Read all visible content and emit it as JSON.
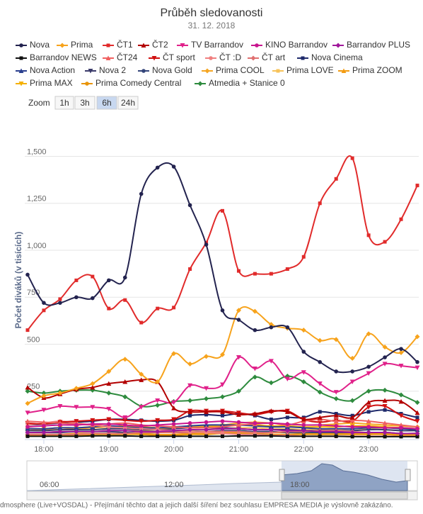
{
  "chart_data": {
    "type": "line",
    "title": "Průběh sledovanosti",
    "subtitle": "31. 12. 2018",
    "y_axis_title": "Počet diváků (v tisících)",
    "zoom": {
      "label": "Zoom",
      "buttons": [
        "1h",
        "3h",
        "6h",
        "24h"
      ],
      "selected": "6h"
    },
    "categories": [
      null,
      "18:00",
      null,
      null,
      null,
      "19:00",
      null,
      null,
      null,
      "20:00",
      null,
      null,
      null,
      "21:00",
      null,
      null,
      null,
      "22:00",
      null,
      null,
      null,
      "23:00",
      null,
      null,
      null
    ],
    "ylim": [
      0,
      1600
    ],
    "yticks": [
      250,
      500,
      750,
      {
        "value": 1000,
        "label": "1,000"
      },
      {
        "value": 1250,
        "label": "1,250"
      },
      {
        "value": 1500,
        "label": "1,500"
      }
    ],
    "grid": true,
    "navigator": {
      "xticks": [
        "06:00",
        "12:00",
        "18:00"
      ]
    },
    "credits": "dmosphere (Live+VOSDAL) - Přejímání těchto dat a jejich další šíření bez souhlasu EMPRESA MEDIA je výslovně zakázáno.",
    "series": [
      {
        "name": "Nova",
        "color": "#23234f",
        "values": [
          870,
          720,
          720,
          750,
          745,
          840,
          855,
          1300,
          1440,
          1445,
          1240,
          1030,
          680,
          630,
          575,
          590,
          590,
          460,
          405,
          355,
          355,
          380,
          430,
          475,
          405
        ]
      },
      {
        "name": "Prima",
        "color": "#f7a31c",
        "values": [
          185,
          225,
          240,
          265,
          290,
          355,
          420,
          340,
          300,
          450,
          395,
          435,
          445,
          680,
          675,
          605,
          585,
          575,
          520,
          525,
          425,
          555,
          485,
          455,
          540
        ]
      },
      {
        "name": "ČT1",
        "color": "#e12b2b",
        "values": [
          575,
          680,
          740,
          840,
          860,
          690,
          735,
          615,
          690,
          695,
          900,
          1040,
          1210,
          890,
          875,
          875,
          900,
          965,
          1250,
          1380,
          1490,
          1080,
          1045,
          1165,
          1345
        ]
      },
      {
        "name": "ČT2",
        "color": "#b30000",
        "values": [
          270,
          215,
          235,
          260,
          270,
          290,
          300,
          310,
          300,
          160,
          140,
          140,
          140,
          125,
          130,
          145,
          140,
          100,
          110,
          120,
          110,
          190,
          200,
          195,
          135
        ]
      },
      {
        "name": "TV Barrandov",
        "color": "#e0218a",
        "values": [
          135,
          150,
          170,
          165,
          165,
          155,
          110,
          165,
          200,
          190,
          280,
          265,
          285,
          430,
          370,
          410,
          315,
          350,
          290,
          245,
          300,
          345,
          395,
          385,
          375
        ]
      },
      {
        "name": "KINO Barrandov",
        "color": "#c8158e",
        "values": [
          60,
          65,
          70,
          70,
          75,
          75,
          70,
          65,
          70,
          75,
          80,
          85,
          90,
          85,
          80,
          80,
          75,
          70,
          70,
          65,
          60,
          60,
          55,
          55,
          50
        ]
      },
      {
        "name": "Barrandov PLUS",
        "color": "#a0179b",
        "values": [
          30,
          30,
          35,
          35,
          35,
          40,
          40,
          35,
          35,
          40,
          45,
          45,
          50,
          50,
          45,
          45,
          40,
          40,
          35,
          35,
          30,
          30,
          30,
          25,
          25
        ]
      },
      {
        "name": "Barrandov NEWS",
        "color": "#111111",
        "values": [
          10,
          10,
          10,
          10,
          12,
          12,
          12,
          10,
          10,
          10,
          10,
          10,
          10,
          12,
          12,
          12,
          10,
          10,
          10,
          10,
          8,
          8,
          8,
          8,
          8
        ]
      },
      {
        "name": "ČT24",
        "color": "#f06060",
        "values": [
          90,
          85,
          80,
          75,
          70,
          75,
          80,
          70,
          65,
          60,
          55,
          55,
          60,
          70,
          75,
          80,
          70,
          90,
          100,
          90,
          95,
          90,
          80,
          70,
          60
        ]
      },
      {
        "name": "ČT sport",
        "color": "#d01010",
        "values": [
          80,
          75,
          85,
          90,
          95,
          100,
          95,
          90,
          95,
          100,
          145,
          145,
          145,
          135,
          125,
          140,
          145,
          100,
          85,
          95,
          90,
          165,
          170,
          120,
          90
        ]
      },
      {
        "name": "ČT :D",
        "color": "#f08080",
        "values": [
          70,
          80,
          90,
          80,
          70,
          60,
          55,
          50,
          45,
          40,
          35,
          30,
          25,
          20,
          20,
          15,
          15,
          10,
          10,
          10,
          10,
          10,
          10,
          10,
          10
        ]
      },
      {
        "name": "ČT art",
        "color": "#e07070",
        "values": [
          20,
          20,
          20,
          20,
          25,
          25,
          25,
          30,
          30,
          30,
          30,
          35,
          35,
          35,
          30,
          30,
          35,
          35,
          40,
          40,
          35,
          30,
          30,
          25,
          25
        ]
      },
      {
        "name": "Nova Cinema",
        "color": "#1f2a6b",
        "values": [
          70,
          75,
          80,
          85,
          90,
          100,
          100,
          95,
          90,
          95,
          120,
          125,
          120,
          130,
          120,
          100,
          110,
          110,
          140,
          130,
          120,
          140,
          150,
          130,
          110
        ]
      },
      {
        "name": "Nova Action",
        "color": "#2a3f8f",
        "values": [
          50,
          50,
          55,
          55,
          60,
          65,
          60,
          55,
          55,
          60,
          65,
          70,
          70,
          70,
          65,
          60,
          60,
          55,
          50,
          50,
          50,
          55,
          55,
          50,
          45
        ]
      },
      {
        "name": "Nova 2",
        "color": "#3a3a6a",
        "values": [
          40,
          40,
          45,
          45,
          45,
          50,
          50,
          45,
          45,
          50,
          55,
          55,
          55,
          50,
          45,
          45,
          45,
          40,
          40,
          40,
          40,
          45,
          45,
          40,
          40
        ]
      },
      {
        "name": "Nova Gold",
        "color": "#34457a",
        "values": [
          30,
          30,
          30,
          35,
          35,
          35,
          30,
          30,
          30,
          35,
          35,
          35,
          40,
          40,
          35,
          35,
          30,
          30,
          30,
          30,
          30,
          30,
          30,
          25,
          25
        ]
      },
      {
        "name": "Prima COOL",
        "color": "#f5a623",
        "values": [
          40,
          45,
          45,
          50,
          55,
          60,
          60,
          55,
          50,
          55,
          60,
          65,
          70,
          80,
          85,
          80,
          75,
          70,
          70,
          75,
          80,
          75,
          70,
          65,
          60
        ]
      },
      {
        "name": "Prima LOVE",
        "color": "#f7c35a",
        "values": [
          30,
          30,
          35,
          35,
          35,
          40,
          40,
          40,
          35,
          35,
          40,
          45,
          50,
          55,
          55,
          50,
          50,
          45,
          45,
          45,
          50,
          50,
          45,
          40,
          40
        ]
      },
      {
        "name": "Prima ZOOM",
        "color": "#f39c12",
        "values": [
          20,
          20,
          20,
          25,
          25,
          25,
          25,
          25,
          20,
          20,
          25,
          25,
          30,
          30,
          30,
          30,
          30,
          25,
          25,
          25,
          25,
          25,
          25,
          20,
          20
        ]
      },
      {
        "name": "Prima MAX",
        "color": "#f4b000",
        "values": [
          50,
          50,
          55,
          55,
          60,
          60,
          65,
          60,
          55,
          55,
          60,
          60,
          65,
          70,
          70,
          65,
          65,
          60,
          60,
          60,
          65,
          65,
          60,
          55,
          50
        ]
      },
      {
        "name": "Prima Comedy Central",
        "color": "#e8940a",
        "values": [
          15,
          15,
          15,
          15,
          20,
          20,
          20,
          20,
          15,
          15,
          20,
          20,
          25,
          25,
          25,
          20,
          20,
          20,
          20,
          20,
          20,
          20,
          20,
          15,
          15
        ]
      },
      {
        "name": "Atmedia + Stanice 0",
        "color": "#2e8b3e",
        "values": [
          250,
          240,
          250,
          255,
          255,
          240,
          220,
          170,
          175,
          195,
          200,
          210,
          220,
          250,
          325,
          295,
          330,
          300,
          245,
          210,
          200,
          250,
          255,
          230,
          190
        ]
      }
    ]
  }
}
